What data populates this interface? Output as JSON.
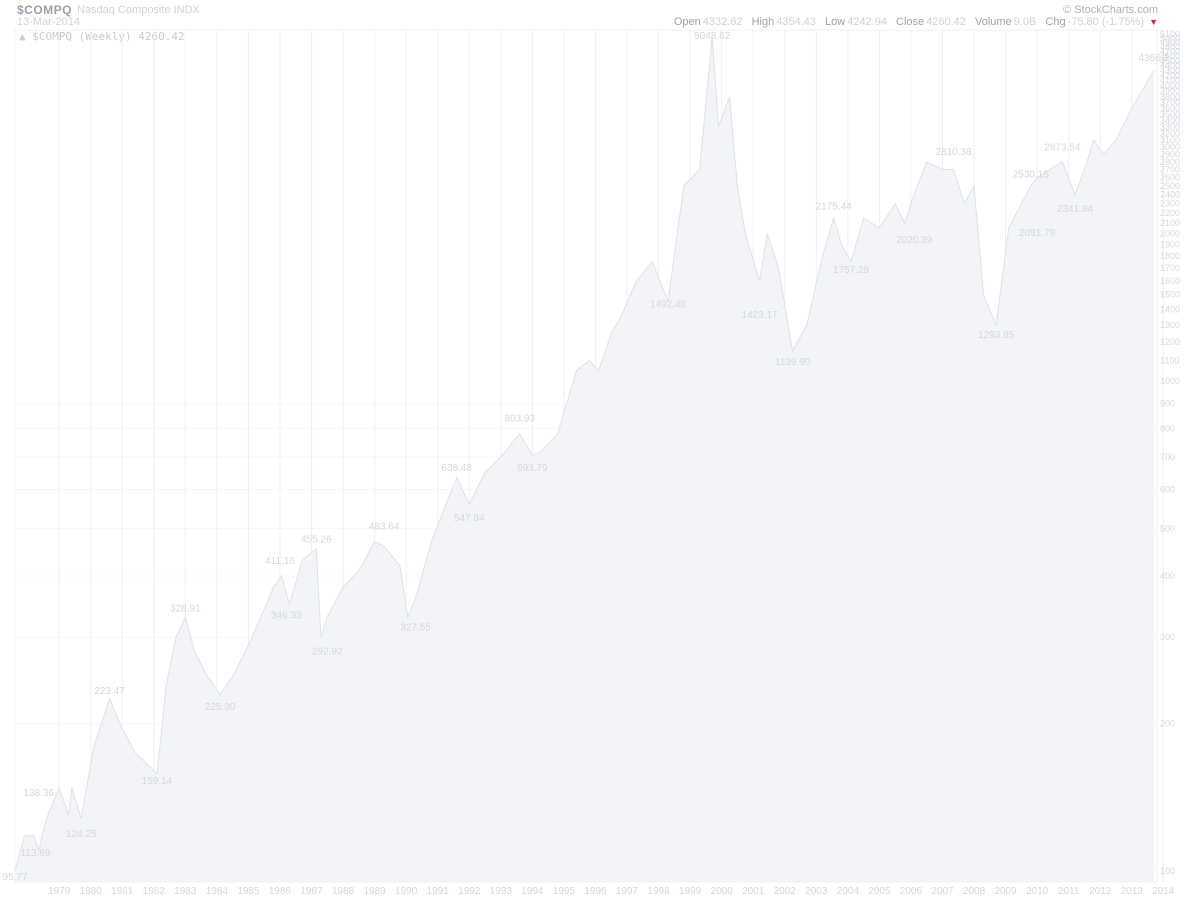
{
  "header": {
    "symbol": "$COMPQ",
    "name": "Nasdaq Composite INDX",
    "date": "13-Mar-2014",
    "credit": "© StockCharts.com",
    "series_label": "▲ $COMPQ (Weekly) 4260.42",
    "open_label": "Open",
    "open_value": "4332.62",
    "high_label": "High",
    "high_value": "4354.43",
    "low_label": "Low",
    "low_value": "4242.94",
    "close_label": "Close",
    "close_value": "4260.42",
    "volume_label": "Volume",
    "volume_value": "9.0B",
    "chg_label": "Chg",
    "chg_value": "-75.80 (-1.75%)",
    "down_arrow_color": "#d01f5a"
  },
  "chart_data": {
    "type": "area",
    "scale": "log",
    "title": "$COMPQ (Weekly) 4260.42",
    "ylim": [
      95,
      5200
    ],
    "xlim": [
      1978.1,
      2014.3
    ],
    "grid": true,
    "x_ticks": [
      "1979",
      "1980",
      "1981",
      "1982",
      "1983",
      "1984",
      "1985",
      "1986",
      "1987",
      "1988",
      "1989",
      "1990",
      "1991",
      "1992",
      "1993",
      "1994",
      "1995",
      "1996",
      "1997",
      "1998",
      "1999",
      "2000",
      "2001",
      "2002",
      "2003",
      "2004",
      "2005",
      "2006",
      "2007",
      "2008",
      "2009",
      "2010",
      "2011",
      "2012",
      "2013",
      "2014"
    ],
    "y_ticks": [
      100,
      200,
      300,
      400,
      500,
      600,
      700,
      800,
      900,
      1000,
      1100,
      1200,
      1300,
      1400,
      1500,
      1600,
      1700,
      1800,
      1900,
      2000,
      2100,
      2200,
      2300,
      2400,
      2500,
      2600,
      2700,
      2800,
      2900,
      3000,
      3100,
      3200,
      3300,
      3400,
      3500,
      3600,
      3700,
      3800,
      3900,
      4000,
      4100,
      4200,
      4300,
      4400,
      4500,
      4600,
      4700,
      4800,
      4900,
      5000,
      5100
    ],
    "x": [
      1978.1,
      1978.4,
      1978.7,
      1978.85,
      1979.1,
      1979.5,
      1979.8,
      1979.9,
      1980.2,
      1980.6,
      1980.9,
      1981.1,
      1981.5,
      1981.9,
      1982.3,
      1982.6,
      1982.9,
      1983.2,
      1983.5,
      1983.8,
      1984.2,
      1984.6,
      1985.0,
      1985.4,
      1985.9,
      1986.3,
      1986.55,
      1986.8,
      1987.2,
      1987.65,
      1987.8,
      1988.0,
      1988.5,
      1989.0,
      1989.5,
      1989.8,
      1990.3,
      1990.55,
      1990.8,
      1991.3,
      1991.9,
      1992.1,
      1992.5,
      1993.0,
      1993.5,
      1994.1,
      1994.5,
      1994.8,
      1995.3,
      1995.9,
      1996.3,
      1996.6,
      1997.0,
      1997.3,
      1997.8,
      1998.3,
      1998.55,
      1998.8,
      1999.3,
      1999.8,
      2000.2,
      2000.4,
      2000.75,
      2001.0,
      2001.25,
      2001.7,
      2001.95,
      2002.3,
      2002.75,
      2003.2,
      2003.7,
      2004.05,
      2004.3,
      2004.6,
      2005.0,
      2005.5,
      2006.0,
      2006.3,
      2006.6,
      2007.0,
      2007.5,
      2007.85,
      2008.2,
      2008.5,
      2008.8,
      2009.2,
      2009.6,
      2010.3,
      2010.5,
      2010.9,
      2011.3,
      2011.7,
      2012.0,
      2012.3,
      2012.6,
      2013.0,
      2013.5,
      2014.2
    ],
    "y": [
      100,
      118,
      118,
      110,
      128,
      148,
      130,
      148,
      128,
      180,
      205,
      225,
      195,
      175,
      165,
      158,
      240,
      300,
      329,
      280,
      250,
      229,
      250,
      280,
      330,
      380,
      400,
      350,
      430,
      455,
      300,
      330,
      380,
      410,
      470,
      460,
      420,
      330,
      360,
      470,
      590,
      635,
      560,
      650,
      700,
      780,
      705,
      720,
      780,
      1050,
      1100,
      1050,
      1250,
      1350,
      1600,
      1750,
      1600,
      1450,
      2500,
      2700,
      5048,
      3300,
      3800,
      2500,
      2000,
      1600,
      2000,
      1700,
      1150,
      1300,
      1800,
      2150,
      1900,
      1750,
      2150,
      2050,
      2300,
      2100,
      2400,
      2800,
      2700,
      2700,
      2300,
      2500,
      1500,
      1300,
      2050,
      2500,
      2600,
      2700,
      2800,
      2400,
      2700,
      3100,
      2900,
      3100,
      3600,
      4300
    ],
    "annotations": [
      {
        "x": 1978.1,
        "y": 95.77,
        "label": "95.77",
        "pos": "below"
      },
      {
        "x": 1978.75,
        "y": 113.69,
        "label": "113.69",
        "pos": "below"
      },
      {
        "x": 1978.85,
        "y": 138.36,
        "label": "138.36",
        "pos": "above"
      },
      {
        "x": 1980.2,
        "y": 124.25,
        "label": "124.25",
        "pos": "below"
      },
      {
        "x": 1981.1,
        "y": 223.47,
        "label": "223.47",
        "pos": "above"
      },
      {
        "x": 1982.6,
        "y": 159.14,
        "label": "159.14",
        "pos": "below"
      },
      {
        "x": 1983.5,
        "y": 328.91,
        "label": "328.91",
        "pos": "above"
      },
      {
        "x": 1984.6,
        "y": 225.3,
        "label": "225.30",
        "pos": "below"
      },
      {
        "x": 1986.5,
        "y": 411.16,
        "label": "411.16",
        "pos": "above"
      },
      {
        "x": 1986.7,
        "y": 346.33,
        "label": "346.33",
        "pos": "below"
      },
      {
        "x": 1987.65,
        "y": 455.26,
        "label": "455.26",
        "pos": "above"
      },
      {
        "x": 1988.0,
        "y": 292.92,
        "label": "292.92",
        "pos": "below"
      },
      {
        "x": 1989.8,
        "y": 483.64,
        "label": "483.64",
        "pos": "above"
      },
      {
        "x": 1990.8,
        "y": 327.55,
        "label": "327.55",
        "pos": "below"
      },
      {
        "x": 1992.1,
        "y": 636.48,
        "label": "636.48",
        "pos": "above"
      },
      {
        "x": 1992.5,
        "y": 547.84,
        "label": "547.84",
        "pos": "below"
      },
      {
        "x": 1994.1,
        "y": 803.93,
        "label": "803.93",
        "pos": "above"
      },
      {
        "x": 1994.5,
        "y": 693.79,
        "label": "693.79",
        "pos": "below"
      },
      {
        "x": 1998.8,
        "y": 1492.4,
        "label": "1492.40",
        "pos": "below"
      },
      {
        "x": 2000.2,
        "y": 5048.62,
        "label": "5048.62",
        "pos": "above"
      },
      {
        "x": 2001.7,
        "y": 1423.17,
        "label": "1423.17",
        "pos": "below"
      },
      {
        "x": 2002.75,
        "y": 1139.9,
        "label": "1139.90",
        "pos": "below"
      },
      {
        "x": 2004.05,
        "y": 2175.44,
        "label": "2175.44",
        "pos": "above"
      },
      {
        "x": 2004.6,
        "y": 1757.29,
        "label": "1757.29",
        "pos": "below"
      },
      {
        "x": 2006.6,
        "y": 2020.39,
        "label": "2020.39",
        "pos": "below"
      },
      {
        "x": 2007.85,
        "y": 2810.38,
        "label": "2810.38",
        "pos": "above"
      },
      {
        "x": 2009.2,
        "y": 1293.85,
        "label": "1293.85",
        "pos": "below"
      },
      {
        "x": 2010.3,
        "y": 2530.15,
        "label": "2530.15",
        "pos": "above"
      },
      {
        "x": 2010.5,
        "y": 2091.79,
        "label": "2091.79",
        "pos": "below"
      },
      {
        "x": 2011.3,
        "y": 2873.54,
        "label": "2873.54",
        "pos": "above"
      },
      {
        "x": 2011.7,
        "y": 2341.84,
        "label": "2341.84",
        "pos": "below"
      },
      {
        "x": 2014.2,
        "y": 4366.2,
        "label": "4366.2",
        "pos": "above"
      }
    ],
    "colors": {
      "area": "#f2f4f7",
      "line": "#dde2e8",
      "grid": "#eef0f3",
      "text": "#d3d8de"
    }
  }
}
